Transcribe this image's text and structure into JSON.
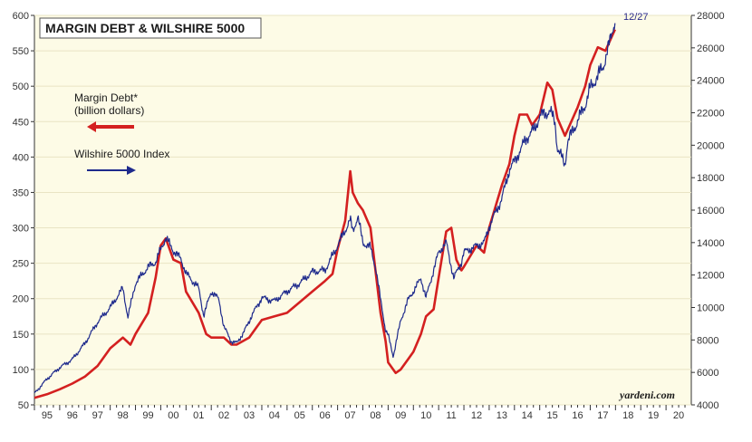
{
  "chart_data": {
    "type": "line",
    "title": "MARGIN DEBT & WILSHIRE 5000",
    "source": "yardeni.com",
    "end_label": "12/27",
    "x_ticks": [
      "95",
      "96",
      "97",
      "98",
      "99",
      "00",
      "01",
      "02",
      "03",
      "04",
      "05",
      "06",
      "07",
      "08",
      "09",
      "10",
      "11",
      "12",
      "13",
      "14",
      "15",
      "16",
      "17",
      "18",
      "19",
      "20"
    ],
    "x_range": [
      1995,
      2021
    ],
    "y_left": {
      "range": [
        50,
        600
      ],
      "ticks": [
        "50",
        "100",
        "150",
        "200",
        "250",
        "300",
        "350",
        "400",
        "450",
        "500",
        "550",
        "600"
      ]
    },
    "y_right": {
      "range": [
        4000,
        28000
      ],
      "ticks": [
        "4000",
        "6000",
        "8000",
        "10000",
        "12000",
        "14000",
        "16000",
        "18000",
        "20000",
        "22000",
        "24000",
        "26000",
        "28000"
      ]
    },
    "legend": [
      {
        "label": "Margin Debt*",
        "sublabel": "(billion dollars)",
        "axis": "left",
        "color": "#d42020"
      },
      {
        "label": "Wilshire 5000 Index",
        "sublabel": "",
        "axis": "right",
        "color": "#1e2a8c"
      }
    ],
    "series": [
      {
        "name": "Margin Debt*",
        "axis": "left",
        "color": "#d42020",
        "points": [
          [
            1995.0,
            60
          ],
          [
            1995.5,
            65
          ],
          [
            1996.0,
            72
          ],
          [
            1996.5,
            80
          ],
          [
            1997.0,
            90
          ],
          [
            1997.5,
            105
          ],
          [
            1998.0,
            130
          ],
          [
            1998.5,
            145
          ],
          [
            1998.8,
            135
          ],
          [
            1999.0,
            150
          ],
          [
            1999.5,
            180
          ],
          [
            1999.8,
            230
          ],
          [
            2000.0,
            275
          ],
          [
            2000.2,
            285
          ],
          [
            2000.5,
            255
          ],
          [
            2000.8,
            250
          ],
          [
            2001.0,
            210
          ],
          [
            2001.5,
            180
          ],
          [
            2001.8,
            150
          ],
          [
            2002.0,
            145
          ],
          [
            2002.5,
            145
          ],
          [
            2002.8,
            135
          ],
          [
            2003.0,
            135
          ],
          [
            2003.5,
            145
          ],
          [
            2003.8,
            160
          ],
          [
            2004.0,
            170
          ],
          [
            2004.5,
            175
          ],
          [
            2005.0,
            180
          ],
          [
            2005.5,
            195
          ],
          [
            2006.0,
            210
          ],
          [
            2006.5,
            225
          ],
          [
            2006.8,
            235
          ],
          [
            2007.0,
            270
          ],
          [
            2007.3,
            310
          ],
          [
            2007.5,
            380
          ],
          [
            2007.6,
            350
          ],
          [
            2007.8,
            335
          ],
          [
            2008.0,
            325
          ],
          [
            2008.3,
            300
          ],
          [
            2008.5,
            240
          ],
          [
            2008.7,
            180
          ],
          [
            2008.9,
            140
          ],
          [
            2009.0,
            110
          ],
          [
            2009.3,
            95
          ],
          [
            2009.5,
            100
          ],
          [
            2009.8,
            115
          ],
          [
            2010.0,
            125
          ],
          [
            2010.3,
            150
          ],
          [
            2010.5,
            175
          ],
          [
            2010.8,
            185
          ],
          [
            2011.0,
            230
          ],
          [
            2011.3,
            295
          ],
          [
            2011.5,
            300
          ],
          [
            2011.7,
            255
          ],
          [
            2011.9,
            240
          ],
          [
            2012.0,
            245
          ],
          [
            2012.5,
            275
          ],
          [
            2012.8,
            265
          ],
          [
            2013.0,
            300
          ],
          [
            2013.5,
            360
          ],
          [
            2013.8,
            390
          ],
          [
            2014.0,
            430
          ],
          [
            2014.2,
            460
          ],
          [
            2014.5,
            460
          ],
          [
            2014.7,
            445
          ],
          [
            2015.0,
            460
          ],
          [
            2015.3,
            505
          ],
          [
            2015.5,
            495
          ],
          [
            2015.7,
            455
          ],
          [
            2016.0,
            430
          ],
          [
            2016.5,
            470
          ],
          [
            2016.8,
            500
          ],
          [
            2017.0,
            530
          ],
          [
            2017.3,
            555
          ],
          [
            2017.6,
            550
          ],
          [
            2017.98,
            580
          ]
        ]
      },
      {
        "name": "Wilshire 5000 Index",
        "axis": "right",
        "color": "#1e2a8c",
        "points": [
          [
            1995.0,
            4700
          ],
          [
            1995.5,
            5600
          ],
          [
            1996.0,
            6300
          ],
          [
            1996.5,
            6800
          ],
          [
            1997.0,
            7800
          ],
          [
            1997.5,
            9100
          ],
          [
            1998.0,
            10000
          ],
          [
            1998.5,
            11200
          ],
          [
            1998.7,
            9400
          ],
          [
            1999.0,
            11500
          ],
          [
            1999.5,
            12500
          ],
          [
            1999.8,
            12800
          ],
          [
            2000.0,
            13600
          ],
          [
            2000.2,
            14300
          ],
          [
            2000.5,
            13500
          ],
          [
            2000.8,
            13000
          ],
          [
            2001.0,
            12100
          ],
          [
            2001.5,
            11200
          ],
          [
            2001.7,
            9500
          ],
          [
            2002.0,
            11000
          ],
          [
            2002.3,
            10500
          ],
          [
            2002.5,
            8800
          ],
          [
            2002.8,
            7900
          ],
          [
            2003.0,
            7800
          ],
          [
            2003.3,
            8500
          ],
          [
            2003.6,
            9500
          ],
          [
            2004.0,
            10600
          ],
          [
            2004.5,
            10400
          ],
          [
            2005.0,
            11000
          ],
          [
            2005.5,
            11500
          ],
          [
            2006.0,
            12200
          ],
          [
            2006.5,
            12300
          ],
          [
            2006.8,
            13200
          ],
          [
            2007.0,
            13800
          ],
          [
            2007.5,
            15400
          ],
          [
            2007.6,
            14700
          ],
          [
            2007.8,
            15600
          ],
          [
            2008.0,
            14000
          ],
          [
            2008.3,
            13700
          ],
          [
            2008.5,
            12500
          ],
          [
            2008.7,
            10500
          ],
          [
            2008.9,
            8600
          ],
          [
            2009.0,
            8300
          ],
          [
            2009.2,
            7000
          ],
          [
            2009.5,
            9200
          ],
          [
            2009.8,
            10500
          ],
          [
            2010.0,
            11000
          ],
          [
            2010.3,
            11800
          ],
          [
            2010.5,
            10600
          ],
          [
            2010.8,
            12300
          ],
          [
            2011.0,
            13400
          ],
          [
            2011.3,
            14000
          ],
          [
            2011.6,
            11800
          ],
          [
            2011.9,
            12800
          ],
          [
            2012.0,
            13400
          ],
          [
            2012.5,
            13800
          ],
          [
            2012.8,
            14000
          ],
          [
            2013.0,
            15000
          ],
          [
            2013.5,
            16700
          ],
          [
            2013.8,
            18500
          ],
          [
            2014.0,
            19000
          ],
          [
            2014.5,
            20500
          ],
          [
            2014.8,
            21000
          ],
          [
            2015.0,
            21800
          ],
          [
            2015.4,
            22100
          ],
          [
            2015.6,
            21500
          ],
          [
            2015.7,
            19800
          ],
          [
            2016.0,
            18800
          ],
          [
            2016.1,
            20200
          ],
          [
            2016.5,
            21500
          ],
          [
            2016.8,
            22500
          ],
          [
            2017.0,
            23500
          ],
          [
            2017.5,
            24800
          ],
          [
            2017.8,
            26500
          ],
          [
            2017.98,
            27800
          ]
        ]
      }
    ]
  }
}
